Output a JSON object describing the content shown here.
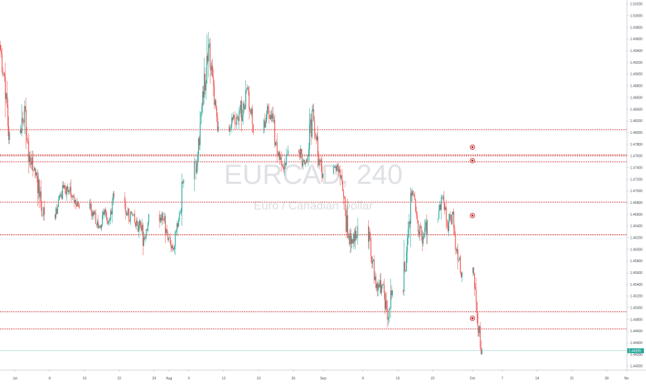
{
  "chart_data": {
    "type": "candlestick",
    "symbol": "EURCAD, 240",
    "description": "Euro / Canadian Dollar",
    "y_tick_labels": [
      "1.44000",
      "1.44200",
      "1.44400",
      "1.44600",
      "1.44800",
      "1.45000",
      "1.45200",
      "1.45400",
      "1.45600",
      "1.45800",
      "1.46000",
      "1.46200",
      "1.46400",
      "1.46600",
      "1.46800",
      "1.47000",
      "1.47200",
      "1.47400",
      "1.47600",
      "1.47800",
      "1.48000",
      "1.48200",
      "1.48400",
      "1.48600",
      "1.48800",
      "1.49000",
      "1.49200",
      "1.49400",
      "1.49600",
      "1.49800",
      "1.50000",
      "1.50200"
    ],
    "x_tick_labels": [
      "Jul",
      "8",
      "15",
      "22",
      "29",
      "Aug",
      "5",
      "12",
      "19",
      "26",
      "Sep",
      "9",
      "16",
      "23",
      "Oct",
      "7",
      "14",
      "21",
      "28",
      "No"
    ],
    "x_tick_dates": [
      "2018-07-01",
      "2018-07-08",
      "2018-07-15",
      "2018-07-22",
      "2018-07-29",
      "2018-08-01",
      "2018-08-05",
      "2018-08-12",
      "2018-08-19",
      "2018-08-26",
      "2018-09-01",
      "2018-09-09",
      "2018-09-16",
      "2018-09-23",
      "2018-10-01",
      "2018-10-07",
      "2018-10-14",
      "2018-10-21",
      "2018-10-28",
      "2018-11-01"
    ],
    "x_range": [
      "2018-06-28",
      "2018-11-01"
    ],
    "y_range": [
      1.4394,
      1.5027
    ],
    "last_price": "1.44265",
    "last_price_value": 1.44265,
    "horizontal_levels": [
      1.4805,
      1.4762,
      1.476,
      1.475,
      1.4681,
      1.4625,
      1.4493,
      1.4464
    ],
    "alerts": [
      1.4775,
      1.4752,
      1.4658,
      1.4482
    ],
    "alert_date": "2018-10-01",
    "colors": {
      "up": "#26a69a",
      "down": "#ef5350",
      "level": "#c62828",
      "alert": "#c62828",
      "last_price": "#26a69a"
    },
    "ohlc_daily": [
      {
        "date": "2018-06-28",
        "o": 1.495,
        "h": 1.4975,
        "l": 1.487,
        "c": 1.4895
      },
      {
        "date": "2018-06-29",
        "o": 1.4895,
        "h": 1.492,
        "l": 1.478,
        "c": 1.48
      },
      {
        "date": "2018-07-02",
        "o": 1.48,
        "h": 1.487,
        "l": 1.474,
        "c": 1.4845
      },
      {
        "date": "2018-07-03",
        "o": 1.4845,
        "h": 1.486,
        "l": 1.473,
        "c": 1.476
      },
      {
        "date": "2018-07-04",
        "o": 1.476,
        "h": 1.479,
        "l": 1.472,
        "c": 1.474
      },
      {
        "date": "2018-07-05",
        "o": 1.474,
        "h": 1.476,
        "l": 1.466,
        "c": 1.469
      },
      {
        "date": "2018-07-06",
        "o": 1.469,
        "h": 1.472,
        "l": 1.464,
        "c": 1.466
      },
      {
        "date": "2018-07-09",
        "o": 1.466,
        "h": 1.471,
        "l": 1.464,
        "c": 1.469
      },
      {
        "date": "2018-07-10",
        "o": 1.469,
        "h": 1.473,
        "l": 1.467,
        "c": 1.471
      },
      {
        "date": "2018-07-11",
        "o": 1.471,
        "h": 1.474,
        "l": 1.468,
        "c": 1.47
      },
      {
        "date": "2018-07-12",
        "o": 1.47,
        "h": 1.472,
        "l": 1.466,
        "c": 1.468
      },
      {
        "date": "2018-07-13",
        "o": 1.468,
        "h": 1.47,
        "l": 1.465,
        "c": 1.467
      },
      {
        "date": "2018-07-16",
        "o": 1.467,
        "h": 1.469,
        "l": 1.464,
        "c": 1.4665
      },
      {
        "date": "2018-07-17",
        "o": 1.4665,
        "h": 1.468,
        "l": 1.461,
        "c": 1.464
      },
      {
        "date": "2018-07-18",
        "o": 1.464,
        "h": 1.468,
        "l": 1.463,
        "c": 1.466
      },
      {
        "date": "2018-07-19",
        "o": 1.466,
        "h": 1.469,
        "l": 1.464,
        "c": 1.465
      },
      {
        "date": "2018-07-20",
        "o": 1.465,
        "h": 1.47,
        "l": 1.464,
        "c": 1.469
      },
      {
        "date": "2018-07-23",
        "o": 1.469,
        "h": 1.47,
        "l": 1.463,
        "c": 1.465
      },
      {
        "date": "2018-07-24",
        "o": 1.465,
        "h": 1.469,
        "l": 1.464,
        "c": 1.466
      },
      {
        "date": "2018-07-25",
        "o": 1.466,
        "h": 1.468,
        "l": 1.462,
        "c": 1.464
      },
      {
        "date": "2018-07-26",
        "o": 1.464,
        "h": 1.467,
        "l": 1.459,
        "c": 1.462
      },
      {
        "date": "2018-07-27",
        "o": 1.462,
        "h": 1.468,
        "l": 1.461,
        "c": 1.466
      },
      {
        "date": "2018-07-30",
        "o": 1.466,
        "h": 1.469,
        "l": 1.463,
        "c": 1.465
      },
      {
        "date": "2018-07-31",
        "o": 1.465,
        "h": 1.468,
        "l": 1.461,
        "c": 1.462
      },
      {
        "date": "2018-08-01",
        "o": 1.462,
        "h": 1.463,
        "l": 1.459,
        "c": 1.46
      },
      {
        "date": "2018-08-02",
        "o": 1.46,
        "h": 1.466,
        "l": 1.459,
        "c": 1.465
      },
      {
        "date": "2018-08-03",
        "o": 1.465,
        "h": 1.473,
        "l": 1.464,
        "c": 1.472
      },
      {
        "date": "2018-08-06",
        "o": 1.472,
        "h": 1.481,
        "l": 1.47,
        "c": 1.479
      },
      {
        "date": "2018-08-07",
        "o": 1.479,
        "h": 1.488,
        "l": 1.477,
        "c": 1.486
      },
      {
        "date": "2018-08-08",
        "o": 1.486,
        "h": 1.4985,
        "l": 1.484,
        "c": 1.495
      },
      {
        "date": "2018-08-09",
        "o": 1.495,
        "h": 1.498,
        "l": 1.486,
        "c": 1.488
      },
      {
        "date": "2018-08-10",
        "o": 1.488,
        "h": 1.49,
        "l": 1.478,
        "c": 1.481
      },
      {
        "date": "2018-08-13",
        "o": 1.481,
        "h": 1.485,
        "l": 1.479,
        "c": 1.483
      },
      {
        "date": "2018-08-14",
        "o": 1.483,
        "h": 1.486,
        "l": 1.48,
        "c": 1.482
      },
      {
        "date": "2018-08-15",
        "o": 1.482,
        "h": 1.487,
        "l": 1.478,
        "c": 1.485
      },
      {
        "date": "2018-08-16",
        "o": 1.485,
        "h": 1.49,
        "l": 1.482,
        "c": 1.487
      },
      {
        "date": "2018-08-17",
        "o": 1.487,
        "h": 1.488,
        "l": 1.478,
        "c": 1.48
      },
      {
        "date": "2018-08-20",
        "o": 1.48,
        "h": 1.485,
        "l": 1.478,
        "c": 1.484
      },
      {
        "date": "2018-08-21",
        "o": 1.484,
        "h": 1.487,
        "l": 1.48,
        "c": 1.482
      },
      {
        "date": "2018-08-22",
        "o": 1.482,
        "h": 1.484,
        "l": 1.474,
        "c": 1.476
      },
      {
        "date": "2018-08-23",
        "o": 1.476,
        "h": 1.478,
        "l": 1.472,
        "c": 1.474
      },
      {
        "date": "2018-08-24",
        "o": 1.474,
        "h": 1.479,
        "l": 1.472,
        "c": 1.477
      },
      {
        "date": "2018-08-27",
        "o": 1.477,
        "h": 1.479,
        "l": 1.473,
        "c": 1.475
      },
      {
        "date": "2018-08-28",
        "o": 1.475,
        "h": 1.478,
        "l": 1.472,
        "c": 1.476
      },
      {
        "date": "2018-08-29",
        "o": 1.476,
        "h": 1.486,
        "l": 1.474,
        "c": 1.484
      },
      {
        "date": "2018-08-30",
        "o": 1.484,
        "h": 1.485,
        "l": 1.474,
        "c": 1.476
      },
      {
        "date": "2018-08-31",
        "o": 1.476,
        "h": 1.477,
        "l": 1.471,
        "c": 1.473
      },
      {
        "date": "2018-09-03",
        "o": 1.473,
        "h": 1.476,
        "l": 1.471,
        "c": 1.474
      },
      {
        "date": "2018-09-04",
        "o": 1.474,
        "h": 1.475,
        "l": 1.468,
        "c": 1.47
      },
      {
        "date": "2018-09-05",
        "o": 1.47,
        "h": 1.472,
        "l": 1.46,
        "c": 1.462
      },
      {
        "date": "2018-09-06",
        "o": 1.462,
        "h": 1.465,
        "l": 1.459,
        "c": 1.461
      },
      {
        "date": "2018-09-07",
        "o": 1.461,
        "h": 1.466,
        "l": 1.46,
        "c": 1.464
      },
      {
        "date": "2018-09-10",
        "o": 1.464,
        "h": 1.465,
        "l": 1.456,
        "c": 1.458
      },
      {
        "date": "2018-09-11",
        "o": 1.458,
        "h": 1.459,
        "l": 1.451,
        "c": 1.453
      },
      {
        "date": "2018-09-12",
        "o": 1.453,
        "h": 1.456,
        "l": 1.45,
        "c": 1.454
      },
      {
        "date": "2018-09-13",
        "o": 1.454,
        "h": 1.455,
        "l": 1.445,
        "c": 1.448
      },
      {
        "date": "2018-09-14",
        "o": 1.448,
        "h": 1.455,
        "l": 1.444,
        "c": 1.453
      },
      {
        "date": "2018-09-17",
        "o": 1.453,
        "h": 1.464,
        "l": 1.452,
        "c": 1.462
      },
      {
        "date": "2018-09-18",
        "o": 1.462,
        "h": 1.472,
        "l": 1.46,
        "c": 1.47
      },
      {
        "date": "2018-09-19",
        "o": 1.47,
        "h": 1.471,
        "l": 1.463,
        "c": 1.465
      },
      {
        "date": "2018-09-20",
        "o": 1.465,
        "h": 1.467,
        "l": 1.459,
        "c": 1.461
      },
      {
        "date": "2018-09-21",
        "o": 1.461,
        "h": 1.466,
        "l": 1.458,
        "c": 1.465
      },
      {
        "date": "2018-09-24",
        "o": 1.465,
        "h": 1.47,
        "l": 1.464,
        "c": 1.469
      },
      {
        "date": "2018-09-25",
        "o": 1.469,
        "h": 1.47,
        "l": 1.462,
        "c": 1.464
      },
      {
        "date": "2018-09-26",
        "o": 1.464,
        "h": 1.468,
        "l": 1.462,
        "c": 1.466
      },
      {
        "date": "2018-09-27",
        "o": 1.466,
        "h": 1.467,
        "l": 1.458,
        "c": 1.46
      },
      {
        "date": "2018-09-28",
        "o": 1.46,
        "h": 1.461,
        "l": 1.454,
        "c": 1.456
      },
      {
        "date": "2018-10-01",
        "o": 1.456,
        "h": 1.457,
        "l": 1.447,
        "c": 1.449
      },
      {
        "date": "2018-10-02",
        "o": 1.449,
        "h": 1.45,
        "l": 1.442,
        "c": 1.4427
      }
    ]
  }
}
